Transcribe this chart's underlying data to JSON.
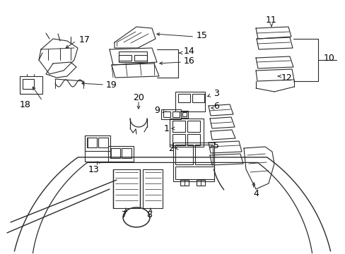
{
  "bg_color": "#ffffff",
  "fig_width": 4.89,
  "fig_height": 3.6,
  "dpi": 100,
  "lc": "#2a2a2a",
  "lw": 0.8,
  "fs": 9.0
}
